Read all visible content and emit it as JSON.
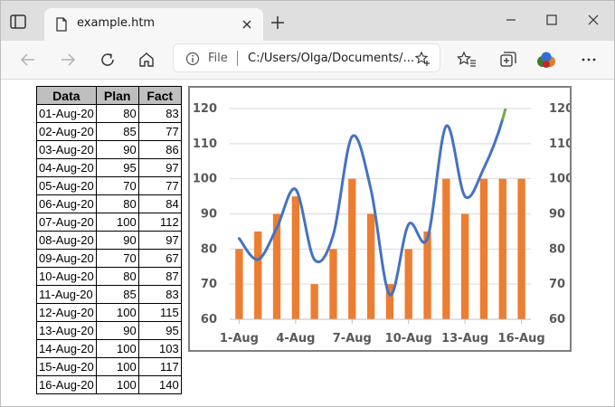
{
  "browser": {
    "tab_title": "example.htm",
    "scheme_label": "File",
    "url_text": "C:/Users/Olga/Documents/..."
  },
  "table": {
    "headers": [
      "Data",
      "Plan",
      "Fact"
    ],
    "rows": [
      [
        "01-Aug-20",
        "80",
        "83"
      ],
      [
        "02-Aug-20",
        "85",
        "77"
      ],
      [
        "03-Aug-20",
        "90",
        "86"
      ],
      [
        "04-Aug-20",
        "95",
        "97"
      ],
      [
        "05-Aug-20",
        "70",
        "77"
      ],
      [
        "06-Aug-20",
        "80",
        "84"
      ],
      [
        "07-Aug-20",
        "100",
        "112"
      ],
      [
        "08-Aug-20",
        "90",
        "97"
      ],
      [
        "09-Aug-20",
        "70",
        "67"
      ],
      [
        "10-Aug-20",
        "80",
        "87"
      ],
      [
        "11-Aug-20",
        "85",
        "83"
      ],
      [
        "12-Aug-20",
        "100",
        "115"
      ],
      [
        "13-Aug-20",
        "90",
        "95"
      ],
      [
        "14-Aug-20",
        "100",
        "103"
      ],
      [
        "15-Aug-20",
        "100",
        "117"
      ],
      [
        "16-Aug-20",
        "100",
        "140"
      ]
    ]
  },
  "chart_data": {
    "type": "bar",
    "title": "",
    "categories": [
      "1-Aug",
      "2-Aug",
      "3-Aug",
      "4-Aug",
      "5-Aug",
      "6-Aug",
      "7-Aug",
      "8-Aug",
      "9-Aug",
      "10-Aug",
      "11-Aug",
      "12-Aug",
      "13-Aug",
      "14-Aug",
      "15-Aug",
      "16-Aug"
    ],
    "x_tick_labels": [
      "1-Aug",
      "4-Aug",
      "7-Aug",
      "10-Aug",
      "13-Aug",
      "16-Aug"
    ],
    "series": [
      {
        "type": "bar",
        "values": [
          80,
          85,
          90,
          95,
          70,
          80,
          100,
          90,
          70,
          80,
          85,
          100,
          90,
          100,
          100,
          100
        ],
        "color": "#ed7d31"
      },
      {
        "type": "line",
        "smooth": true,
        "values": [
          83,
          77,
          86,
          97,
          77,
          84,
          112,
          97,
          67,
          87,
          83,
          115,
          95,
          103,
          117,
          140
        ],
        "color": "#4472c4",
        "tail_color": "#70ad47"
      }
    ],
    "ylim": [
      60,
      120
    ],
    "y_ticks": [
      "60",
      "70",
      "80",
      "90",
      "100",
      "110",
      "120"
    ],
    "secondary_y_ticks": [
      "60",
      "70",
      "80",
      "90",
      "100",
      "110",
      "120"
    ],
    "grid": true,
    "legend": "none"
  }
}
